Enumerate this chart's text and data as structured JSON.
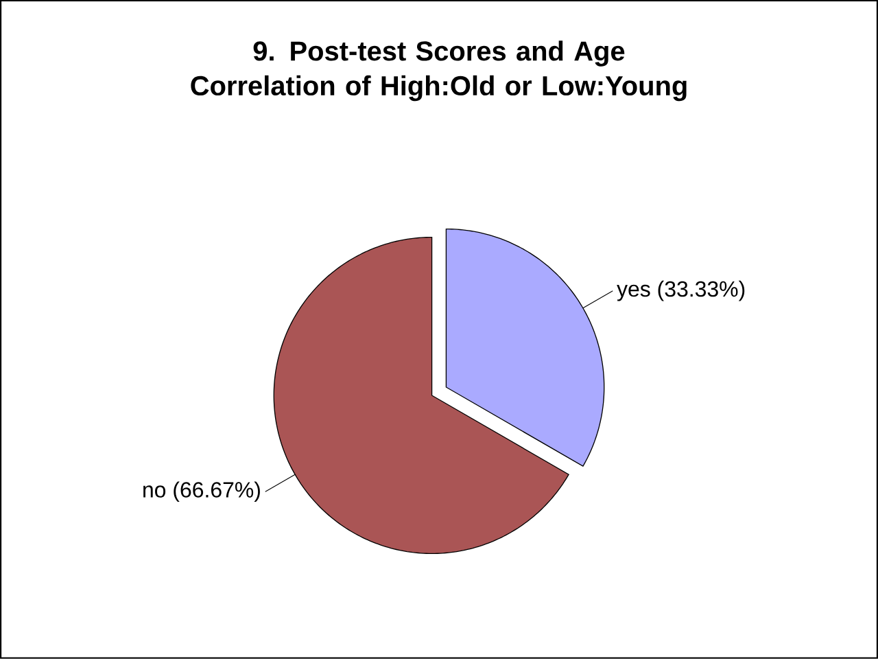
{
  "chart_data": {
    "type": "pie",
    "title": "9. Post-test Scores and Age Correlation of High:Old or Low:Young",
    "categories": [
      "yes",
      "no"
    ],
    "values": [
      33.33,
      66.67
    ],
    "value_labels": [
      "(33.33%)",
      "(66.67%)"
    ],
    "colors": [
      "#aaaaff",
      "#aa5555"
    ]
  }
}
